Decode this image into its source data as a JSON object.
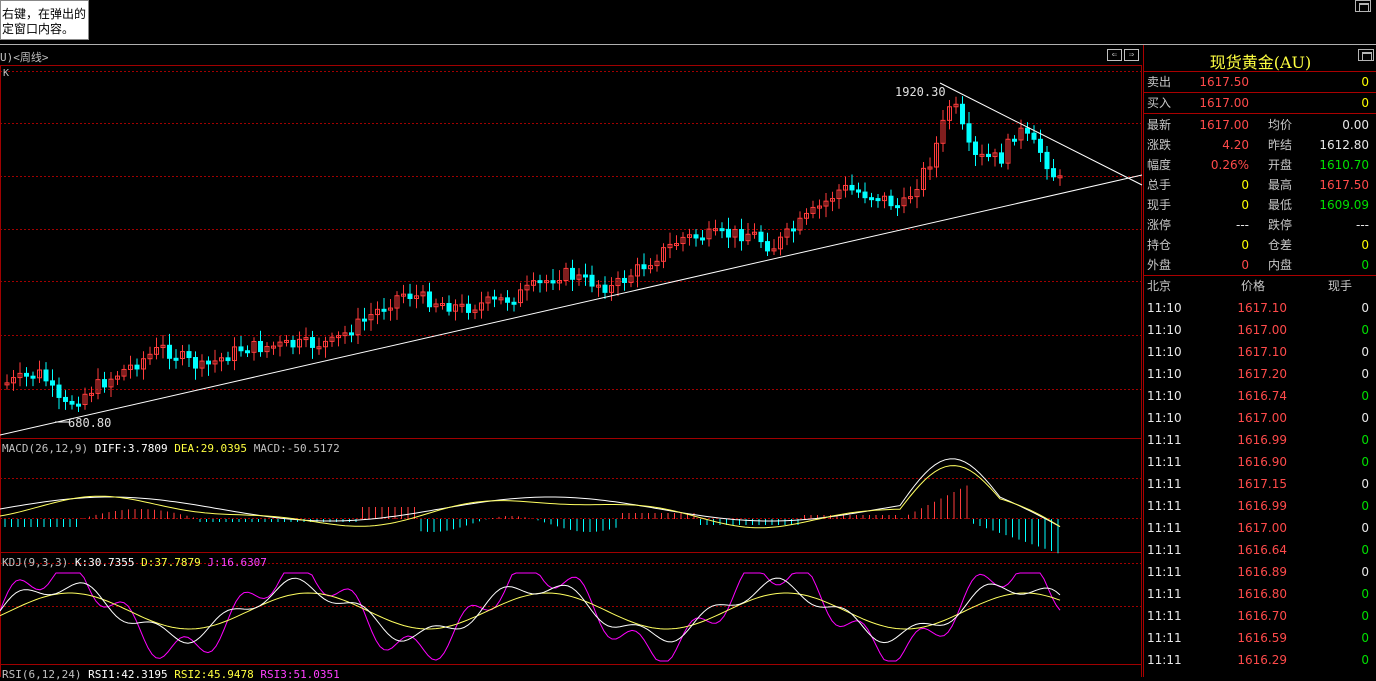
{
  "tooltip": {
    "line1": "右键，在弹出的",
    "line2": "定窗口内容。"
  },
  "chart": {
    "title": "U)<周线>",
    "k_label": "K",
    "high_label": "1920.30",
    "low_label": "680.80",
    "nav_left": "⇐",
    "nav_right": "⇒"
  },
  "macd": {
    "name": "MACD(26,12,9)",
    "diff": "DIFF:3.7809",
    "dea": "DEA:29.0395",
    "macd": "MACD:-50.5172"
  },
  "kdj": {
    "name": "KDJ(9,3,3)",
    "k": "K:30.7355",
    "d": "D:37.7879",
    "j": "J:16.6307"
  },
  "rsi": {
    "name": "RSI(6,12,24)",
    "r1": "RSI1:42.3195",
    "r2": "RSI2:45.9478",
    "r3": "RSI3:51.0351"
  },
  "quote": {
    "title": "现货黄金(AU)",
    "sell_label": "卖出",
    "sell_price": "1617.50",
    "sell_vol": "0",
    "buy_label": "买入",
    "buy_price": "1617.00",
    "buy_vol": "0",
    "rows": [
      {
        "l1": "最新",
        "v1": "1617.00",
        "c1": "red",
        "l2": "均价",
        "v2": "0.00",
        "c2": "wht"
      },
      {
        "l1": "涨跌",
        "v1": "4.20",
        "c1": "red",
        "l2": "昨结",
        "v2": "1612.80",
        "c2": "wht"
      },
      {
        "l1": "幅度",
        "v1": "0.26%",
        "c1": "red",
        "l2": "开盘",
        "v2": "1610.70",
        "c2": "grn"
      },
      {
        "l1": "总手",
        "v1": "0",
        "c1": "yel",
        "l2": "最高",
        "v2": "1617.50",
        "c2": "red"
      },
      {
        "l1": "现手",
        "v1": "0",
        "c1": "yel",
        "l2": "最低",
        "v2": "1609.09",
        "c2": "grn"
      },
      {
        "l1": "涨停",
        "v1": "---",
        "c1": "wht",
        "l2": "跌停",
        "v2": "---",
        "c2": "wht"
      },
      {
        "l1": "持仓",
        "v1": "0",
        "c1": "yel",
        "l2": "仓差",
        "v2": "0",
        "c2": "yel"
      },
      {
        "l1": "外盘",
        "v1": "0",
        "c1": "red",
        "l2": "内盘",
        "v2": "0",
        "c2": "grn"
      }
    ],
    "tick_header": {
      "time": "北京",
      "price": "价格",
      "vol": "现手"
    },
    "ticks": [
      {
        "time": "11:10",
        "price": "1617.10",
        "vol": "0",
        "vc": "wht"
      },
      {
        "time": "11:10",
        "price": "1617.00",
        "vol": "0",
        "vc": "grn"
      },
      {
        "time": "11:10",
        "price": "1617.10",
        "vol": "0",
        "vc": "wht"
      },
      {
        "time": "11:10",
        "price": "1617.20",
        "vol": "0",
        "vc": "wht"
      },
      {
        "time": "11:10",
        "price": "1616.74",
        "vol": "0",
        "vc": "grn"
      },
      {
        "time": "11:10",
        "price": "1617.00",
        "vol": "0",
        "vc": "wht"
      },
      {
        "time": "11:11",
        "price": "1616.99",
        "vol": "0",
        "vc": "grn"
      },
      {
        "time": "11:11",
        "price": "1616.90",
        "vol": "0",
        "vc": "grn"
      },
      {
        "time": "11:11",
        "price": "1617.15",
        "vol": "0",
        "vc": "wht"
      },
      {
        "time": "11:11",
        "price": "1616.99",
        "vol": "0",
        "vc": "grn"
      },
      {
        "time": "11:11",
        "price": "1617.00",
        "vol": "0",
        "vc": "wht"
      },
      {
        "time": "11:11",
        "price": "1616.64",
        "vol": "0",
        "vc": "grn"
      },
      {
        "time": "11:11",
        "price": "1616.89",
        "vol": "0",
        "vc": "wht"
      },
      {
        "time": "11:11",
        "price": "1616.80",
        "vol": "0",
        "vc": "grn"
      },
      {
        "time": "11:11",
        "price": "1616.70",
        "vol": "0",
        "vc": "grn"
      },
      {
        "time": "11:11",
        "price": "1616.59",
        "vol": "0",
        "vc": "grn"
      },
      {
        "time": "11:11",
        "price": "1616.29",
        "vol": "0",
        "vc": "grn"
      }
    ]
  },
  "colors": {
    "up": "#ff3c3c",
    "down": "#00ffff",
    "grid": "#a00000",
    "trend": "#ffffff",
    "kline": "#ffffff",
    "dline": "#ffff60",
    "jline": "#ff00ff"
  }
}
